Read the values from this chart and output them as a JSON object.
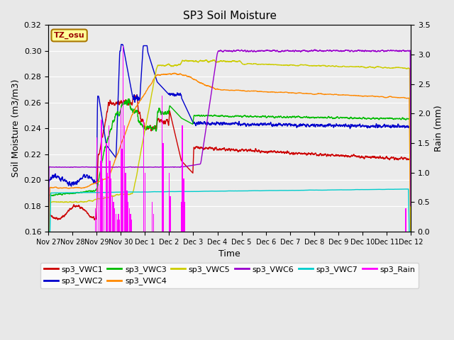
{
  "title": "SP3 Soil Moisture",
  "ylabel_left": "Soil Moisture (m3/m3)",
  "ylabel_right": "Rain (mm)",
  "xlabel": "Time",
  "ylim_left": [
    0.16,
    0.32
  ],
  "ylim_right": [
    0.0,
    3.5
  ],
  "bg_color": "#e8e8e8",
  "plot_bg_color": "#ebebeb",
  "tz_label": "TZ_osu",
  "tz_box_color": "#ffff99",
  "tz_text_color": "#990000",
  "series_colors": {
    "sp3_VWC1": "#cc0000",
    "sp3_VWC2": "#0000cc",
    "sp3_VWC3": "#00bb00",
    "sp3_VWC4": "#ff8800",
    "sp3_VWC5": "#cccc00",
    "sp3_VWC6": "#9900cc",
    "sp3_VWC7": "#00cccc",
    "sp3_Rain": "#ff00ff"
  },
  "xtick_labels": [
    "Nov 27",
    "Nov 28",
    "Nov 29",
    "Nov 30",
    "Dec 1",
    "Dec 2",
    "Dec 3",
    "Dec 4",
    "Dec 5",
    "Dec 6",
    "Dec 7",
    "Dec 8",
    "Dec 9",
    "Dec 10",
    "Dec 11",
    "Dec 12"
  ],
  "xtick_positions": [
    0,
    1,
    2,
    3,
    4,
    5,
    6,
    7,
    8,
    9,
    10,
    11,
    12,
    13,
    14,
    15
  ],
  "ytick_left": [
    0.16,
    0.18,
    0.2,
    0.22,
    0.24,
    0.26,
    0.28,
    0.3,
    0.32
  ],
  "ytick_right": [
    0.0,
    0.5,
    1.0,
    1.5,
    2.0,
    2.5,
    3.0,
    3.5
  ]
}
